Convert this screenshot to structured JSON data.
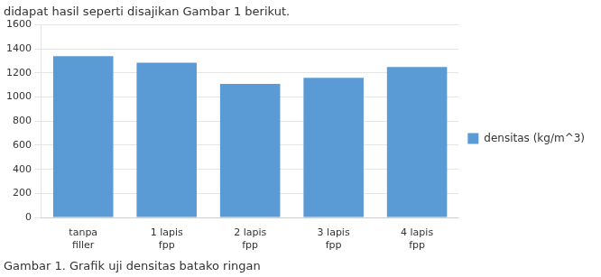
{
  "chart_data": {
    "type": "bar",
    "title": "didapat hasil seperti disajikan Gambar 1 berikut.",
    "annotations": [
      "Gambar 1. Grafik uji densitas batako ringan"
    ],
    "categories": [
      "tanpa\nfiller",
      "1 lapis\nfpp",
      "2 lapis\nfpp",
      "3 lapis\nfpp",
      "4 lapis\nfpp"
    ],
    "series": [
      {
        "name": "densitas (kg/m^3)",
        "color": "#5b9bd5",
        "values": [
          1340,
          1285,
          1110,
          1160,
          1250
        ]
      }
    ],
    "ylim": [
      0,
      1600
    ],
    "yticks": [
      0,
      200,
      400,
      600,
      800,
      1000,
      1200,
      1400,
      1600
    ],
    "grid": true,
    "legend": "right"
  }
}
